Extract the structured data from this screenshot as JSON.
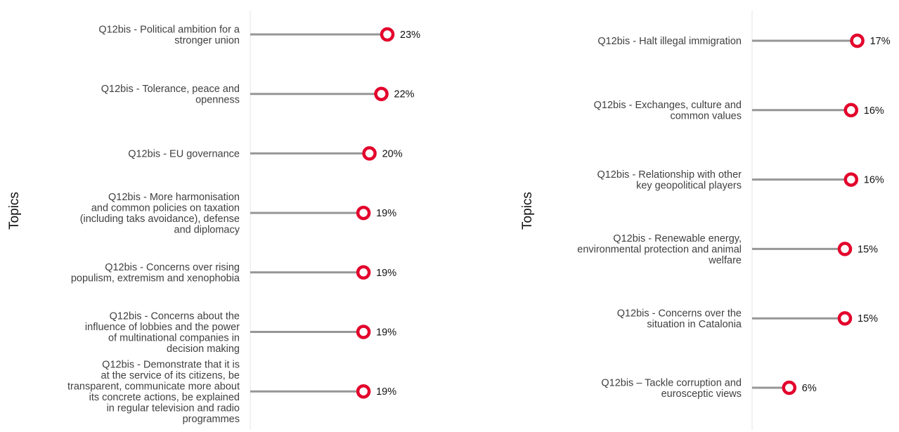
{
  "chart_data": [
    {
      "type": "lollipop",
      "ylabel": "Topics",
      "colors": {
        "stem": "#969696",
        "marker": "#e3002b",
        "axis": "#e4e4e4"
      },
      "categories": [
        "Q12bis - Political ambition for a stronger union",
        "Q12bis - Tolerance, peace and openness",
        "Q12bis - EU governance",
        "Q12bis - More harmonisation and common policies on taxation (including taks avoidance), defense and diplomacy",
        "Q12bis - Concerns over rising populism, extremism and xenophobia",
        "Q12bis - Concerns about the influence of lobbies and the power of multinational companies in decision making",
        "Q12bis - Demonstrate that it is at the service of its citizens, be transparent, communicate more about its concrete actions, be explained in regular television and radio programmes"
      ],
      "label_lines": [
        [
          "Q12bis - Political ambition for a",
          "stronger union"
        ],
        [
          "Q12bis - Tolerance, peace and",
          "openness"
        ],
        [
          "Q12bis - EU governance"
        ],
        [
          "Q12bis - More harmonisation",
          "and common policies on taxation",
          "(including taks avoidance), defense",
          "and diplomacy"
        ],
        [
          "Q12bis - Concerns over rising",
          "populism, extremism and xenophobia"
        ],
        [
          "Q12bis - Concerns about the",
          "influence of lobbies and the power",
          "of multinational companies in",
          "decision making"
        ],
        [
          "Q12bis - Demonstrate that it is",
          "at the service of its citizens, be",
          "transparent, communicate more about",
          "its concrete actions, be explained",
          "in regular television and radio",
          "programmes"
        ]
      ],
      "values": [
        23,
        22,
        20,
        19,
        19,
        19,
        19
      ],
      "value_labels": [
        "23%",
        "22%",
        "20%",
        "19%",
        "19%",
        "19%",
        "19%"
      ]
    },
    {
      "type": "lollipop",
      "ylabel": "Topics",
      "colors": {
        "stem": "#969696",
        "marker": "#e3002b",
        "axis": "#e4e4e4"
      },
      "categories": [
        "Q12bis - Halt illegal immigration",
        "Q12bis - Exchanges, culture and common values",
        "Q12bis - Relationship with other key geopolitical players",
        "Q12bis - Renewable energy, environmental protection and animal welfare",
        "Q12bis - Concerns over the situation in Catalonia",
        "Q12bis – Tackle corruption and eurosceptic views"
      ],
      "label_lines": [
        [
          "Q12bis - Halt illegal immigration"
        ],
        [
          "Q12bis - Exchanges, culture and",
          "common values"
        ],
        [
          "Q12bis - Relationship with other",
          "key geopolitical players"
        ],
        [
          "Q12bis - Renewable energy,",
          "environmental protection and animal",
          "welfare"
        ],
        [
          "Q12bis - Concerns over the",
          "situation in Catalonia"
        ],
        [
          "Q12bis – Tackle corruption and",
          "eurosceptic views"
        ]
      ],
      "values": [
        17,
        16,
        16,
        15,
        15,
        6
      ],
      "value_labels": [
        "17%",
        "16%",
        "16%",
        "15%",
        "15%",
        "6%"
      ]
    }
  ]
}
